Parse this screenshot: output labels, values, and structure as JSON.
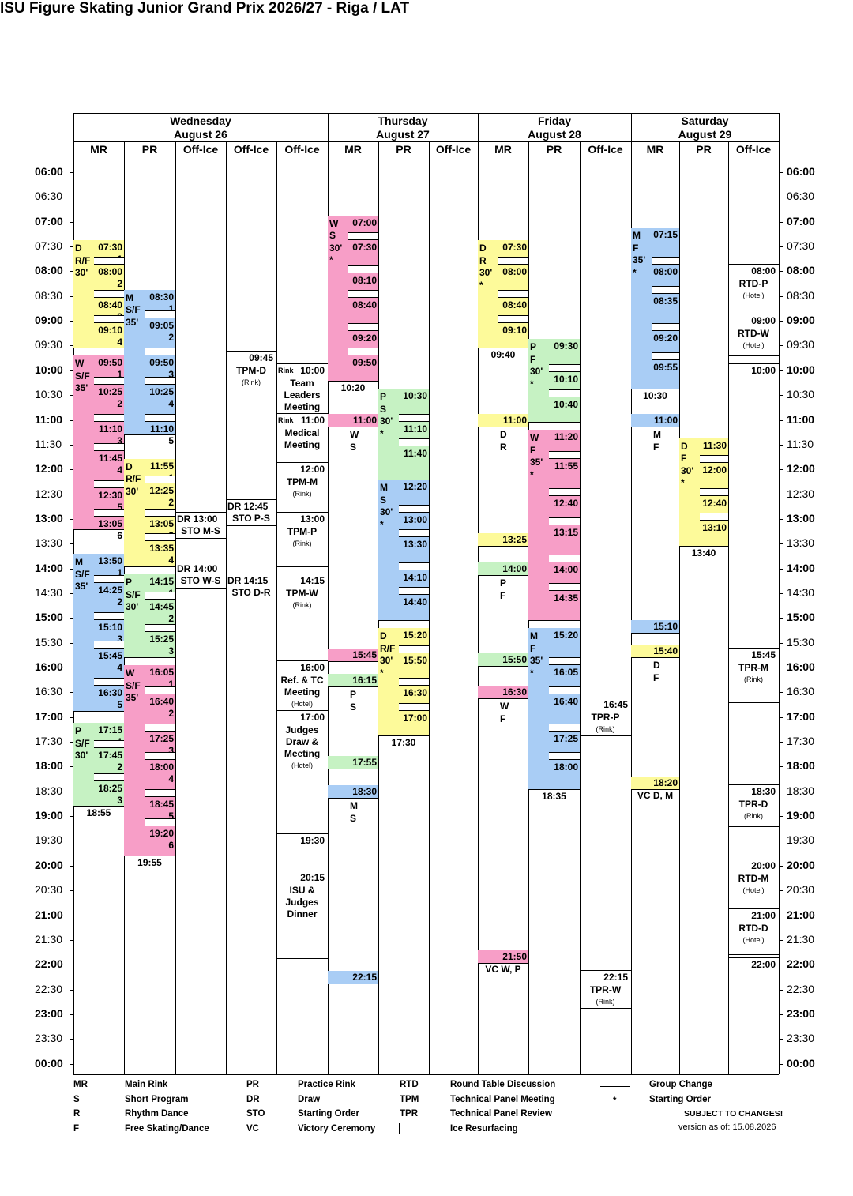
{
  "title": "ISU Figure Skating Junior Grand Prix 2026/27 - Riga / LAT",
  "days": [
    {
      "name": "Wednesday",
      "date": "August 26"
    },
    {
      "name": "Thursday",
      "date": "August 27"
    },
    {
      "name": "Friday",
      "date": "August 28"
    },
    {
      "name": "Saturday",
      "date": "August 29"
    }
  ],
  "columns": [
    "MR",
    "PR",
    "Off-Ice",
    "Off-Ice",
    "Off-Ice",
    "MR",
    "PR",
    "Off-Ice",
    "MR",
    "PR",
    "Off-Ice",
    "MR",
    "PR",
    "Off-Ice"
  ],
  "times": [
    "06:00",
    "06:30",
    "07:00",
    "07:30",
    "08:00",
    "08:30",
    "09:00",
    "09:30",
    "10:00",
    "10:30",
    "11:00",
    "11:30",
    "12:00",
    "12:30",
    "13:00",
    "13:30",
    "14:00",
    "14:30",
    "15:00",
    "15:30",
    "16:00",
    "16:30",
    "17:00",
    "17:30",
    "18:00",
    "18:30",
    "19:00",
    "19:30",
    "20:00",
    "20:30",
    "21:00",
    "21:30",
    "22:00",
    "22:30",
    "23:00",
    "23:30",
    "00:00"
  ],
  "colors": {
    "pink": "#f79ec7",
    "yellow": "#fdfa9a",
    "blue": "#a9cdf5",
    "green": "#c6f2c3"
  },
  "events": [
    {
      "col": 0,
      "start": "07:30",
      "end": "09:40",
      "color": "yellow",
      "label": [
        "D",
        "R/F",
        "30'"
      ],
      "slots": [
        "07:30",
        "08:00",
        "08:40",
        "09:10"
      ],
      "groups": [
        "1",
        "2",
        "3",
        "4"
      ],
      "end_label": ""
    },
    {
      "col": 0,
      "start": "09:50",
      "end": "13:20",
      "color": "pink",
      "label": [
        "W",
        "S/F",
        "35'"
      ],
      "slots": [
        "09:50",
        "10:25",
        "11:10",
        "11:45",
        "12:30",
        "13:05"
      ],
      "groups": [
        "1",
        "2",
        "3",
        "4",
        "5",
        "6"
      ],
      "end_label": ""
    },
    {
      "col": 0,
      "start": "13:50",
      "end": "17:00",
      "color": "blue",
      "label": [
        "M",
        "S/F",
        "35'"
      ],
      "slots": [
        "13:50",
        "14:25",
        "15:10",
        "15:45",
        "16:30"
      ],
      "groups": [
        "1",
        "2",
        "3",
        "4",
        "5"
      ],
      "end_label": ""
    },
    {
      "col": 0,
      "start": "17:15",
      "end": "18:55",
      "color": "green",
      "label": [
        "P",
        "S/F",
        "30'"
      ],
      "slots": [
        "17:15",
        "17:45",
        "18:25"
      ],
      "groups": [
        "1",
        "2",
        "3"
      ],
      "end_label": "18:55"
    },
    {
      "col": 1,
      "start": "08:30",
      "end": "11:25",
      "color": "blue",
      "label": [
        "M",
        "S/F",
        "35'"
      ],
      "slots": [
        "08:30",
        "09:05",
        "09:50",
        "10:25",
        "11:10"
      ],
      "groups": [
        "1",
        "2",
        "3",
        "4",
        "5"
      ],
      "end_label": ""
    },
    {
      "col": 1,
      "start": "11:55",
      "end": "14:05",
      "color": "yellow",
      "label": [
        "D",
        "R/F",
        "30'"
      ],
      "slots": [
        "11:55",
        "12:25",
        "13:05",
        "13:35"
      ],
      "groups": [
        "1",
        "2",
        "3",
        "4"
      ],
      "end_label": ""
    },
    {
      "col": 1,
      "start": "14:15",
      "end": "15:55",
      "color": "green",
      "label": [
        "P",
        "S/F",
        "30'"
      ],
      "slots": [
        "14:15",
        "14:45",
        "15:25"
      ],
      "groups": [
        "1",
        "2",
        "3"
      ],
      "end_label": ""
    },
    {
      "col": 1,
      "start": "16:05",
      "end": "19:55",
      "color": "pink",
      "label": [
        "W",
        "S/F",
        "35'"
      ],
      "slots": [
        "16:05",
        "16:40",
        "17:25",
        "18:00",
        "18:45",
        "19:20"
      ],
      "groups": [
        "1",
        "2",
        "3",
        "4",
        "5",
        "6"
      ],
      "end_label": "19:55"
    },
    {
      "col": 5,
      "start": "07:00",
      "end": "10:20",
      "color": "pink",
      "label": [
        "W",
        "S",
        "30'",
        "*"
      ],
      "slots": [
        "07:00",
        "07:30",
        "08:10",
        "08:40",
        "09:20",
        "09:50"
      ],
      "groups": [],
      "end_label": "10:20"
    },
    {
      "col": 6,
      "start": "10:30",
      "end": "12:20",
      "color": "green",
      "label": [
        "P",
        "S",
        "30'",
        "*"
      ],
      "slots": [
        "10:30",
        "11:10",
        "11:40"
      ],
      "groups": [],
      "end_label": ""
    },
    {
      "col": 6,
      "start": "12:20",
      "end": "15:10",
      "color": "blue",
      "label": [
        "M",
        "S",
        "30'",
        "*"
      ],
      "slots": [
        "12:20",
        "13:00",
        "13:30",
        "14:10",
        "14:40"
      ],
      "groups": [],
      "end_label": ""
    },
    {
      "col": 6,
      "start": "15:20",
      "end": "17:30",
      "color": "yellow",
      "label": [
        "D",
        "R/F",
        "30'",
        "*"
      ],
      "slots": [
        "15:20",
        "15:50",
        "16:30",
        "17:00"
      ],
      "groups": [],
      "end_label": "17:30"
    },
    {
      "col": 8,
      "start": "07:30",
      "end": "09:40",
      "color": "yellow",
      "label": [
        "D",
        "R",
        "30'",
        "*"
      ],
      "slots": [
        "07:30",
        "08:00",
        "08:40",
        "09:10"
      ],
      "groups": [],
      "end_label": "09:40"
    },
    {
      "col": 9,
      "start": "09:30",
      "end": "11:10",
      "color": "green",
      "label": [
        "P",
        "F",
        "30'",
        "*"
      ],
      "slots": [
        "09:30",
        "10:10",
        "10:40"
      ],
      "groups": [],
      "end_label": ""
    },
    {
      "col": 9,
      "start": "11:20",
      "end": "15:10",
      "color": "pink",
      "label": [
        "W",
        "F",
        "35'",
        "*"
      ],
      "slots": [
        "11:20",
        "11:55",
        "12:40",
        "13:15",
        "14:00",
        "14:35"
      ],
      "groups": [],
      "end_label": ""
    },
    {
      "col": 9,
      "start": "15:20",
      "end": "18:35",
      "color": "blue",
      "label": [
        "M",
        "F",
        "35'",
        "*"
      ],
      "slots": [
        "15:20",
        "16:05",
        "16:40",
        "17:25",
        "18:00"
      ],
      "groups": [],
      "end_label": "18:35"
    },
    {
      "col": 11,
      "start": "07:15",
      "end": "10:30",
      "color": "blue",
      "label": [
        "M",
        "F",
        "35'",
        "*"
      ],
      "slots": [
        "07:15",
        "08:00",
        "08:35",
        "09:20",
        "09:55"
      ],
      "groups": [],
      "end_label": "10:30"
    },
    {
      "col": 12,
      "start": "11:30",
      "end": "13:40",
      "color": "yellow",
      "label": [
        "D",
        "F",
        "30'",
        "*"
      ],
      "slots": [
        "11:30",
        "12:00",
        "12:40",
        "13:10"
      ],
      "groups": [],
      "end_label": "13:40"
    }
  ],
  "bars": [
    {
      "col": 5,
      "time": "11:00",
      "color": "pink",
      "text": "11:00",
      "below": [
        "W",
        "S"
      ]
    },
    {
      "col": 5,
      "time": "15:45",
      "color": "pink",
      "text": "15:45",
      "below": []
    },
    {
      "col": 5,
      "time": "16:15",
      "color": "green",
      "text": "16:15",
      "below": [
        "P",
        "S"
      ]
    },
    {
      "col": 5,
      "time": "17:55",
      "color": "green",
      "text": "17:55",
      "below": []
    },
    {
      "col": 5,
      "time": "18:30",
      "color": "blue",
      "text": "18:30",
      "below": [
        "M",
        "S"
      ]
    },
    {
      "col": 5,
      "time": "22:15",
      "color": "blue",
      "text": "22:15",
      "below": []
    },
    {
      "col": 8,
      "time": "11:00",
      "color": "yellow",
      "text": "11:00",
      "below": [
        "D",
        "R"
      ]
    },
    {
      "col": 8,
      "time": "13:25",
      "color": "yellow",
      "text": "13:25",
      "below": []
    },
    {
      "col": 8,
      "time": "14:00",
      "color": "green",
      "text": "14:00",
      "below": [
        "P",
        "F"
      ]
    },
    {
      "col": 8,
      "time": "15:50",
      "color": "green",
      "text": "15:50",
      "below": []
    },
    {
      "col": 8,
      "time": "16:30",
      "color": "pink",
      "text": "16:30",
      "below": [
        "W",
        "F"
      ]
    },
    {
      "col": 8,
      "time": "21:50",
      "color": "pink",
      "text": "21:50",
      "below": [
        "VC W, P"
      ]
    },
    {
      "col": 11,
      "time": "11:00",
      "color": "blue",
      "text": "11:00",
      "below": [
        "M",
        "F"
      ]
    },
    {
      "col": 11,
      "time": "15:10",
      "color": "blue",
      "text": "15:10",
      "below": []
    },
    {
      "col": 11,
      "time": "15:40",
      "color": "yellow",
      "text": "15:40",
      "below": [
        "D",
        "F"
      ]
    },
    {
      "col": 11,
      "time": "18:20",
      "color": "yellow",
      "text": "18:20",
      "below": [
        "VC D, M"
      ]
    }
  ],
  "office": [
    {
      "col": 2,
      "time": "13:00",
      "text": "DR  13:00",
      "sub": "STO M-S",
      "note": ""
    },
    {
      "col": 2,
      "time": "14:00",
      "text": "DR  14:00",
      "sub": "STO W-S",
      "note": ""
    },
    {
      "col": 3,
      "time": "09:45",
      "text": "09:45",
      "sub": "TPM-D",
      "note": "(Rink)"
    },
    {
      "col": 3,
      "time": "12:45",
      "text": "DR  12:45",
      "sub": "STO P-S",
      "note": ""
    },
    {
      "col": 3,
      "time": "14:15",
      "text": "DR  14:15",
      "sub": "STO D-R",
      "note": ""
    },
    {
      "col": 4,
      "time": "10:00",
      "text": "10:00",
      "sub": "Team Leaders Meeting",
      "note": "",
      "tag": "Rink"
    },
    {
      "col": 4,
      "time": "11:00",
      "text": "11:00",
      "sub": "Medical Meeting",
      "note": "",
      "tag": "Rink"
    },
    {
      "col": 4,
      "time": "12:00",
      "text": "12:00",
      "sub": "TPM-M",
      "note": "(Rink)"
    },
    {
      "col": 4,
      "time": "13:00",
      "text": "13:00",
      "sub": "TPM-P",
      "note": "(Rink)"
    },
    {
      "col": 4,
      "time": "14:15",
      "text": "14:15",
      "sub": "TPM-W",
      "note": "(Rink)"
    },
    {
      "col": 4,
      "time": "16:00",
      "text": "16:00",
      "sub": "Ref. & TC Meeting",
      "note": "(Hotel)"
    },
    {
      "col": 4,
      "time": "17:00",
      "text": "17:00",
      "sub": "Judges Draw & Meeting",
      "note": "(Hotel)"
    },
    {
      "col": 4,
      "time": "19:30",
      "text": "19:30",
      "sub": "",
      "note": ""
    },
    {
      "col": 4,
      "time": "20:15",
      "text": "20:15",
      "sub": "ISU & Judges Dinner",
      "note": ""
    },
    {
      "col": 10,
      "time": "16:45",
      "text": "16:45",
      "sub": "TPR-P",
      "note": "(Rink)"
    },
    {
      "col": 10,
      "time": "22:15",
      "text": "22:15",
      "sub": "TPR-W",
      "note": "(Rink)"
    },
    {
      "col": 13,
      "time": "08:00",
      "text": "08:00",
      "sub": "RTD-P",
      "note": "(Hotel)"
    },
    {
      "col": 13,
      "time": "09:00",
      "text": "09:00",
      "sub": "RTD-W",
      "note": "(Hotel)"
    },
    {
      "col": 13,
      "time": "10:00",
      "text": "10:00",
      "sub": "",
      "note": ""
    },
    {
      "col": 13,
      "time": "15:45",
      "text": "15:45",
      "sub": "TPR-M",
      "note": "(Rink)"
    },
    {
      "col": 13,
      "time": "18:30",
      "text": "18:30",
      "sub": "TPR-D",
      "note": "(Rink)"
    },
    {
      "col": 13,
      "time": "20:00",
      "text": "20:00",
      "sub": "RTD-M",
      "note": "(Hotel)"
    },
    {
      "col": 13,
      "time": "21:00",
      "text": "21:00",
      "sub": "RTD-D",
      "note": "(Hotel)"
    },
    {
      "col": 13,
      "time": "22:00",
      "text": "22:00",
      "sub": "",
      "note": ""
    }
  ],
  "legend": {
    "c1": [
      [
        "MR",
        "Main Rink"
      ],
      [
        "S",
        "Short Program"
      ],
      [
        "R",
        "Rhythm Dance"
      ],
      [
        "F",
        "Free Skating/Dance"
      ]
    ],
    "c2": [
      [
        "PR",
        "Practice Rink"
      ],
      [
        "DR",
        "Draw"
      ],
      [
        "STO",
        "Starting Order"
      ],
      [
        "VC",
        "Victory Ceremony"
      ]
    ],
    "c3": [
      [
        "RTD",
        "Round Table Discussion"
      ],
      [
        "TPM",
        "Technical Panel Meeting"
      ],
      [
        "TPR",
        "Technical Panel Review"
      ],
      [
        "",
        "Ice Resurfacing"
      ]
    ],
    "c4": [
      [
        "",
        "Group Change"
      ],
      [
        "*",
        "Starting Order"
      ]
    ],
    "subject": "SUBJECT TO CHANGES!",
    "version": "version as of: 15.08.2026"
  }
}
